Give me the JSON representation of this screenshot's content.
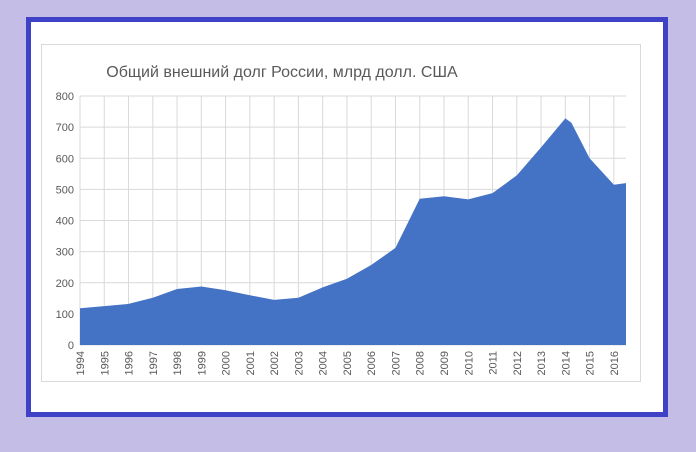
{
  "chart_data": {
    "type": "area",
    "title": "Общий внешний долг России, млрд долл. США",
    "xlabel": "",
    "ylabel": "",
    "x": [
      1994,
      1995,
      1996,
      1997,
      1998,
      1999,
      2000,
      2001,
      2002,
      2003,
      2004,
      2005,
      2006,
      2007,
      2008,
      2009,
      2010,
      2011,
      2012,
      2013,
      2014,
      2014.25,
      2015,
      2016,
      2016.5
    ],
    "x_ticks": [
      "1994",
      "1995",
      "1996",
      "1997",
      "1998",
      "1999",
      "2000",
      "2001",
      "2002",
      "2003",
      "2004",
      "2005",
      "2006",
      "2007",
      "2008",
      "2009",
      "2010",
      "2011",
      "2012",
      "2013",
      "2014",
      "2015",
      "2016"
    ],
    "series": [
      {
        "values": [
          118,
          125,
          132,
          152,
          180,
          188,
          176,
          160,
          145,
          152,
          185,
          213,
          257,
          312,
          470,
          478,
          468,
          488,
          545,
          635,
          728,
          714,
          600,
          515,
          520
        ]
      }
    ],
    "y_ticks": [
      "0",
      "100",
      "200",
      "300",
      "400",
      "500",
      "600",
      "700",
      "800"
    ],
    "ylim": [
      0,
      800
    ],
    "grid": true,
    "fill_color": "#4472c4"
  }
}
